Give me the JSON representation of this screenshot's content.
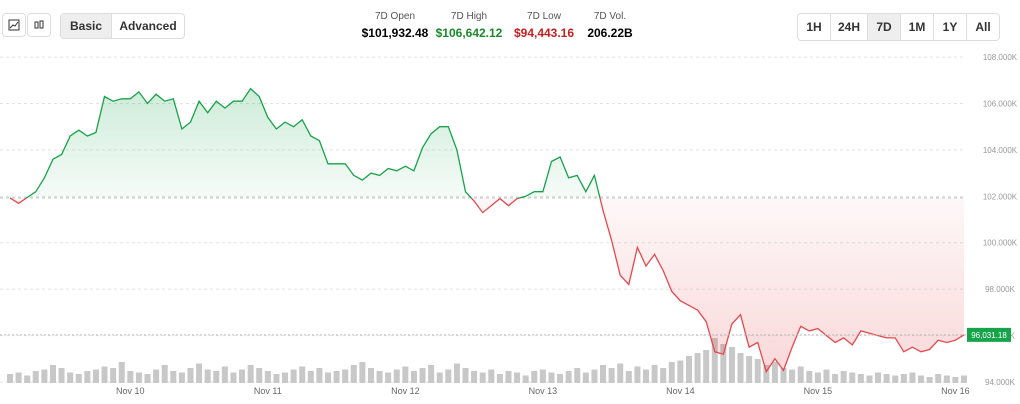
{
  "header": {
    "view_buttons": [
      "Basic",
      "Advanced"
    ],
    "stats": [
      {
        "label": "7D Open",
        "value": "$101,932.48"
      },
      {
        "label": "7D High",
        "value": "$106,642.12"
      },
      {
        "label": "7D Low",
        "value": "$94,443.16"
      },
      {
        "label": "7D Vol.",
        "value": "206.22B"
      }
    ],
    "ranges": [
      "1H",
      "24H",
      "7D",
      "1M",
      "1Y",
      "All"
    ]
  },
  "chart_data": {
    "type": "line",
    "categories": [
      null,
      null,
      null,
      null,
      null,
      null,
      null,
      null,
      null,
      null,
      null,
      null,
      null,
      null,
      "Nov 10",
      null,
      null,
      null,
      null,
      null,
      null,
      null,
      null,
      null,
      null,
      null,
      null,
      null,
      null,
      null,
      "Nov 11",
      null,
      null,
      null,
      null,
      null,
      null,
      null,
      null,
      null,
      null,
      null,
      null,
      null,
      null,
      null,
      "Nov 12",
      null,
      null,
      null,
      null,
      null,
      null,
      null,
      null,
      null,
      null,
      null,
      null,
      null,
      null,
      null,
      "Nov 13",
      null,
      null,
      null,
      null,
      null,
      null,
      null,
      null,
      null,
      null,
      null,
      null,
      null,
      null,
      null,
      "Nov 14",
      null,
      null,
      null,
      null,
      null,
      null,
      null,
      null,
      null,
      null,
      null,
      null,
      null,
      null,
      null,
      "Nov 15",
      null,
      null,
      null,
      null,
      null,
      null,
      null,
      null,
      null,
      null,
      null,
      null,
      null,
      null,
      null,
      "Nov 16",
      null
    ],
    "values": [
      101932,
      101700,
      101950,
      102200,
      102800,
      103600,
      103800,
      104600,
      104850,
      104600,
      104750,
      106300,
      106100,
      106200,
      106200,
      106500,
      106000,
      106400,
      106100,
      106200,
      104900,
      105200,
      106100,
      105600,
      106100,
      105800,
      106100,
      106100,
      106642,
      106300,
      105400,
      104900,
      105200,
      105000,
      105300,
      104600,
      104400,
      103400,
      103400,
      103400,
      102900,
      102700,
      103000,
      102900,
      103200,
      103100,
      103300,
      103100,
      104100,
      104700,
      105000,
      105000,
      104000,
      102200,
      101800,
      101300,
      101600,
      101900,
      101600,
      101900,
      102000,
      102200,
      102200,
      103500,
      103700,
      102800,
      102900,
      102200,
      102900,
      101400,
      100100,
      98600,
      98200,
      99800,
      99000,
      99500,
      98800,
      97900,
      97500,
      97300,
      97100,
      96600,
      95300,
      95200,
      96500,
      96900,
      95500,
      95700,
      94443,
      95000,
      94500,
      95500,
      96400,
      96200,
      96300,
      96000,
      95700,
      95900,
      95600,
      96200,
      96100,
      96000,
      95900,
      95900,
      95300,
      95500,
      95300,
      95400,
      95800,
      95700,
      95800,
      96031.18
    ],
    "volume": [
      6,
      7,
      5,
      8,
      9,
      12,
      10,
      7,
      6,
      8,
      9,
      11,
      10,
      14,
      8,
      7,
      6,
      9,
      12,
      8,
      7,
      10,
      13,
      9,
      8,
      11,
      7,
      9,
      12,
      10,
      8,
      6,
      7,
      9,
      11,
      8,
      10,
      7,
      8,
      9,
      12,
      14,
      10,
      8,
      7,
      9,
      11,
      8,
      10,
      12,
      7,
      9,
      13,
      10,
      8,
      7,
      9,
      6,
      8,
      7,
      5,
      8,
      9,
      7,
      6,
      8,
      10,
      7,
      9,
      12,
      10,
      13,
      8,
      11,
      9,
      12,
      10,
      14,
      15,
      18,
      20,
      22,
      30,
      26,
      24,
      20,
      18,
      16,
      12,
      14,
      10,
      9,
      11,
      8,
      7,
      9,
      6,
      8,
      7,
      6,
      5,
      7,
      6,
      5,
      6,
      7,
      5,
      4,
      6,
      5,
      4,
      5
    ],
    "baseline": 101932.48,
    "last_label": "96,031.18",
    "ylim": [
      93440,
      108520
    ],
    "yticks": [
      {
        "value": 94000,
        "label": "94.000K"
      },
      {
        "value": 96000,
        "label": "96.000K"
      },
      {
        "value": 98000,
        "label": "98.000K"
      },
      {
        "value": 100000,
        "label": "100.000K"
      },
      {
        "value": 102000,
        "label": "102.000K"
      },
      {
        "value": 104000,
        "label": "104.000K"
      },
      {
        "value": 106000,
        "label": "106.000K"
      },
      {
        "value": 108000,
        "label": "108.000K"
      }
    ],
    "up_color": "#16a34a",
    "down_color": "#e5484d",
    "volume_color": "#c8c8c8"
  }
}
